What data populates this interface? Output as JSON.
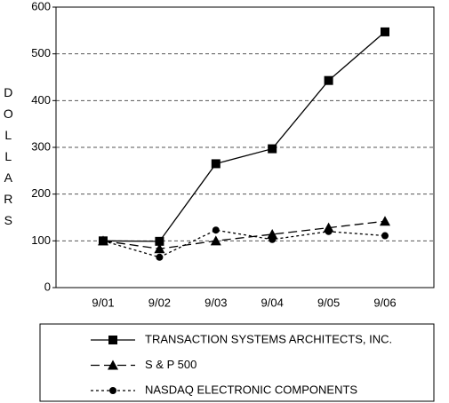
{
  "chart_data": {
    "type": "line",
    "y_label": "DOLLARS",
    "categories": [
      "9/01",
      "9/02",
      "9/03",
      "9/04",
      "9/05",
      "9/06"
    ],
    "series": [
      {
        "name": "TRANSACTION SYSTEMS ARCHITECTS, INC.",
        "color": "#000000",
        "marker": "square",
        "dash": "solid",
        "values": [
          100,
          99,
          265,
          297,
          443,
          547
        ]
      },
      {
        "name": "S & P 500",
        "color": "#000000",
        "marker": "triangle",
        "dash": "long-dash",
        "values": [
          100,
          83,
          100,
          114,
          128,
          142
        ]
      },
      {
        "name": "NASDAQ ELECTRONIC COMPONENTS",
        "color": "#000000",
        "marker": "circle",
        "dash": "short-dash",
        "values": [
          100,
          65,
          123,
          103,
          120,
          111
        ]
      }
    ],
    "ylim": [
      0,
      600
    ],
    "yticks": [
      0,
      100,
      200,
      300,
      400,
      500,
      600
    ],
    "grid": true
  }
}
